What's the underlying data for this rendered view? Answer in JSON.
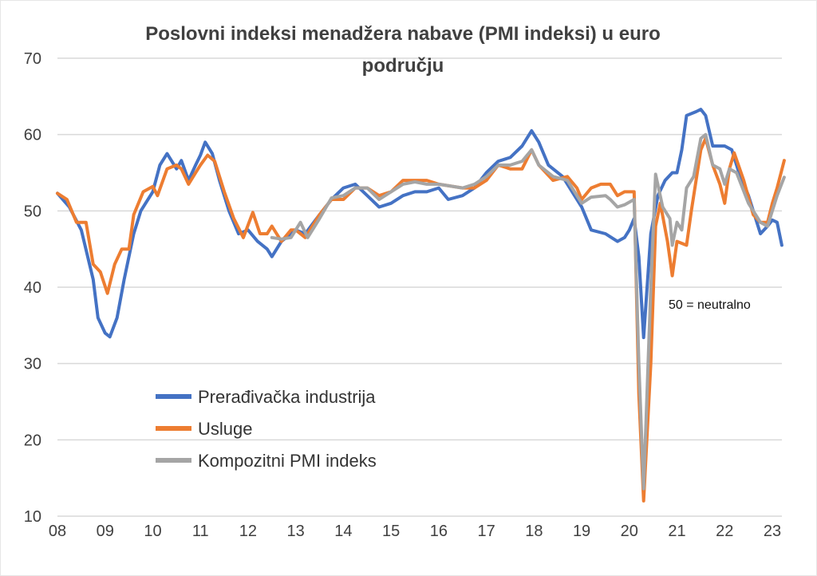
{
  "chart_data": {
    "type": "line",
    "title": "Poslovni indeksi menadžera nabave (PMI indeksi) u euro području",
    "title_lines": [
      "Poslovni indeksi menadžera nabave (PMI indeksi) u euro",
      "području"
    ],
    "xlabel": "",
    "ylabel": "",
    "ylim": [
      10,
      70
    ],
    "yticks": [
      10,
      20,
      30,
      40,
      50,
      60,
      70
    ],
    "xlim": [
      2008,
      2023.25
    ],
    "xticks": [
      2008,
      2009,
      2010,
      2011,
      2012,
      2013,
      2014,
      2015,
      2016,
      2017,
      2018,
      2019,
      2020,
      2021,
      2022,
      2023
    ],
    "xtick_labels": [
      "08",
      "09",
      "10",
      "11",
      "12",
      "13",
      "14",
      "15",
      "16",
      "17",
      "18",
      "19",
      "20",
      "21",
      "22",
      "23"
    ],
    "grid": "horizontal",
    "legend_position": "bottom-left",
    "annotation": "50 = neutralno",
    "series": [
      {
        "name": "Prerađivačka industrija",
        "color": "#4472C4",
        "x": [
          2008.0,
          2008.25,
          2008.5,
          2008.75,
          2008.85,
          2009.0,
          2009.1,
          2009.25,
          2009.4,
          2009.6,
          2009.75,
          2010.0,
          2010.15,
          2010.3,
          2010.5,
          2010.6,
          2010.75,
          2010.9,
          2011.0,
          2011.1,
          2011.25,
          2011.4,
          2011.6,
          2011.8,
          2012.0,
          2012.2,
          2012.4,
          2012.5,
          2012.7,
          2013.0,
          2013.2,
          2013.5,
          2013.75,
          2014.0,
          2014.25,
          2014.5,
          2014.75,
          2015.0,
          2015.25,
          2015.5,
          2015.75,
          2016.0,
          2016.2,
          2016.5,
          2016.75,
          2017.0,
          2017.25,
          2017.5,
          2017.75,
          2017.95,
          2018.1,
          2018.3,
          2018.6,
          2018.9,
          2019.0,
          2019.2,
          2019.5,
          2019.75,
          2019.9,
          2020.0,
          2020.1,
          2020.2,
          2020.3,
          2020.45,
          2020.6,
          2020.75,
          2020.9,
          2021.0,
          2021.1,
          2021.2,
          2021.4,
          2021.5,
          2021.6,
          2021.75,
          2022.0,
          2022.15,
          2022.3,
          2022.5,
          2022.75,
          2022.9,
          2023.0,
          2023.1,
          2023.2
        ],
        "values": [
          52.3,
          50.5,
          47.5,
          41,
          36,
          34,
          33.5,
          36,
          41,
          47,
          50,
          52.5,
          56,
          57.5,
          55.5,
          56.6,
          54,
          56,
          57.3,
          59,
          57.5,
          54,
          50,
          47,
          47.5,
          46,
          45,
          44,
          46,
          47.5,
          47,
          49.5,
          51.5,
          53,
          53.5,
          52,
          50.5,
          51,
          52,
          52.5,
          52.5,
          53,
          51.5,
          52,
          53,
          55,
          56.5,
          57,
          58.5,
          60.5,
          59,
          56,
          54.5,
          51.5,
          50.5,
          47.5,
          47,
          46,
          46.5,
          47.5,
          49,
          44,
          33.4,
          47,
          52,
          54,
          55,
          55,
          58,
          62.5,
          63,
          63.3,
          62.5,
          58.5,
          58.5,
          58,
          55,
          52,
          47,
          48,
          48.8,
          48.5,
          45.5
        ]
      },
      {
        "name": "Usluge",
        "color": "#ED7D31",
        "x": [
          2008.0,
          2008.2,
          2008.4,
          2008.6,
          2008.75,
          2008.9,
          2009.05,
          2009.2,
          2009.35,
          2009.5,
          2009.6,
          2009.8,
          2010.0,
          2010.1,
          2010.3,
          2010.5,
          2010.6,
          2010.75,
          2010.9,
          2011.0,
          2011.15,
          2011.3,
          2011.5,
          2011.7,
          2011.9,
          2012.1,
          2012.25,
          2012.4,
          2012.5,
          2012.7,
          2012.9,
          2013.0,
          2013.2,
          2013.5,
          2013.75,
          2014.0,
          2014.25,
          2014.5,
          2014.75,
          2015.0,
          2015.25,
          2015.5,
          2015.75,
          2016.0,
          2016.5,
          2016.75,
          2017.0,
          2017.25,
          2017.5,
          2017.75,
          2017.95,
          2018.1,
          2018.4,
          2018.7,
          2018.9,
          2019.0,
          2019.2,
          2019.4,
          2019.6,
          2019.75,
          2019.9,
          2020.1,
          2020.2,
          2020.3,
          2020.45,
          2020.55,
          2020.65,
          2020.8,
          2020.9,
          2021.0,
          2021.2,
          2021.3,
          2021.5,
          2021.6,
          2021.75,
          2021.9,
          2022.0,
          2022.1,
          2022.2,
          2022.4,
          2022.6,
          2022.75,
          2022.9,
          2023.0,
          2023.1,
          2023.25
        ],
        "values": [
          52.3,
          51.5,
          48.5,
          48.5,
          43,
          42,
          39.2,
          43,
          45,
          45,
          49.5,
          52.5,
          53.2,
          52,
          55.5,
          56,
          55.5,
          53.5,
          55,
          56,
          57.3,
          56.5,
          52.5,
          49,
          46.5,
          49.8,
          47,
          47,
          48,
          46,
          47.5,
          47.5,
          46.5,
          49.5,
          51.5,
          51.5,
          53,
          53,
          52,
          52.5,
          54,
          54,
          54,
          53.5,
          53,
          53,
          54,
          56,
          55.5,
          55.5,
          58,
          56,
          54,
          54.5,
          53,
          51.5,
          53,
          53.5,
          53.5,
          52,
          52.5,
          52.5,
          26,
          12,
          30,
          48,
          51,
          46,
          41.5,
          46,
          45.5,
          50,
          58,
          59.5,
          56,
          53.5,
          51,
          55.5,
          57.6,
          54,
          49.5,
          48.5,
          48.5,
          51,
          53,
          56.6
        ]
      },
      {
        "name": "Kompozitni PMI indeks",
        "color": "#A5A5A5",
        "x": [
          2012.5,
          2012.7,
          2012.9,
          2013.1,
          2013.25,
          2013.5,
          2013.75,
          2014.0,
          2014.25,
          2014.5,
          2014.75,
          2015.0,
          2015.25,
          2015.5,
          2015.75,
          2016.0,
          2016.5,
          2016.75,
          2017.0,
          2017.25,
          2017.5,
          2017.75,
          2017.95,
          2018.1,
          2018.4,
          2018.7,
          2018.9,
          2019.0,
          2019.2,
          2019.5,
          2019.6,
          2019.75,
          2019.9,
          2020.1,
          2020.2,
          2020.3,
          2020.45,
          2020.55,
          2020.7,
          2020.85,
          2020.9,
          2021.0,
          2021.1,
          2021.2,
          2021.35,
          2021.5,
          2021.6,
          2021.75,
          2021.9,
          2022.0,
          2022.1,
          2022.25,
          2022.5,
          2022.75,
          2022.9,
          2023.0,
          2023.1,
          2023.25
        ],
        "values": [
          46.5,
          46.3,
          46.5,
          48.5,
          46.5,
          49,
          51.7,
          52,
          53,
          53,
          51.5,
          52.5,
          53.5,
          53.8,
          53.5,
          53.5,
          53,
          53.5,
          54.5,
          56,
          56,
          56.5,
          58,
          56,
          54.5,
          54,
          52,
          51,
          51.8,
          52,
          51.5,
          50.5,
          50.8,
          51.5,
          30,
          13.6,
          40,
          54.8,
          50.5,
          49,
          45.5,
          48.5,
          47.5,
          53,
          54.5,
          59.5,
          60,
          56,
          55.5,
          53.5,
          55.5,
          55,
          51,
          48.5,
          48,
          50,
          52,
          54.4
        ]
      }
    ]
  }
}
